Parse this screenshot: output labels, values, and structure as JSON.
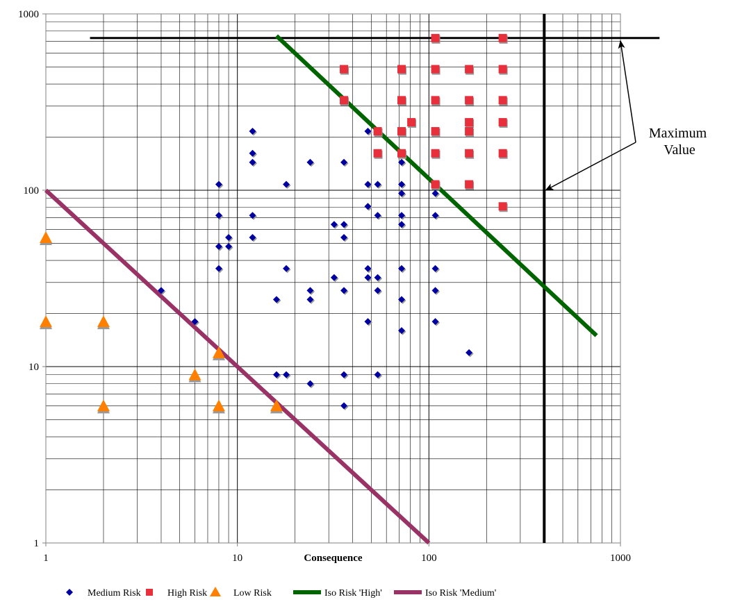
{
  "chart_data": {
    "type": "scatter",
    "xlabel": "Consequence",
    "ylabel": "",
    "xscale": "log",
    "yscale": "log",
    "xlim": [
      1,
      1000
    ],
    "ylim": [
      1,
      1000
    ],
    "grid": "on",
    "x_ticks": [
      "1",
      "10",
      "100",
      "1000"
    ],
    "y_ticks": [
      "1",
      "10",
      "100",
      "1000"
    ],
    "legend_position": "bottom",
    "annotation": {
      "text_lines": [
        "Maximum",
        "Value"
      ],
      "points_to": [
        {
          "x": 1000,
          "y": 730
        },
        {
          "x": 400,
          "y": 100
        }
      ]
    },
    "reference_lines": [
      {
        "orientation": "horizontal",
        "y": 730,
        "x_from": 1.7,
        "x_to": 1600,
        "color": "#000000"
      },
      {
        "orientation": "vertical",
        "x": 400,
        "y_from": 1,
        "y_to": 1000,
        "color": "#000000"
      }
    ],
    "series": [
      {
        "name": "Medium Risk",
        "kind": "scatter",
        "marker": "diamond",
        "color": "#0000a0",
        "points": [
          {
            "x": 4,
            "y": 27
          },
          {
            "x": 6,
            "y": 18
          },
          {
            "x": 8,
            "y": 108
          },
          {
            "x": 8,
            "y": 72
          },
          {
            "x": 8,
            "y": 48
          },
          {
            "x": 8,
            "y": 36
          },
          {
            "x": 9,
            "y": 54
          },
          {
            "x": 9,
            "y": 48
          },
          {
            "x": 12,
            "y": 216
          },
          {
            "x": 12,
            "y": 162
          },
          {
            "x": 12,
            "y": 144
          },
          {
            "x": 12,
            "y": 72
          },
          {
            "x": 12,
            "y": 54
          },
          {
            "x": 16,
            "y": 24
          },
          {
            "x": 16,
            "y": 9
          },
          {
            "x": 18,
            "y": 108
          },
          {
            "x": 18,
            "y": 36
          },
          {
            "x": 18,
            "y": 9
          },
          {
            "x": 24,
            "y": 144
          },
          {
            "x": 24,
            "y": 27
          },
          {
            "x": 24,
            "y": 24
          },
          {
            "x": 24,
            "y": 8
          },
          {
            "x": 32,
            "y": 64
          },
          {
            "x": 32,
            "y": 32
          },
          {
            "x": 36,
            "y": 144
          },
          {
            "x": 36,
            "y": 64
          },
          {
            "x": 36,
            "y": 54
          },
          {
            "x": 36,
            "y": 27
          },
          {
            "x": 36,
            "y": 9
          },
          {
            "x": 36,
            "y": 6
          },
          {
            "x": 48,
            "y": 216
          },
          {
            "x": 48,
            "y": 108
          },
          {
            "x": 48,
            "y": 81
          },
          {
            "x": 48,
            "y": 36
          },
          {
            "x": 48,
            "y": 32
          },
          {
            "x": 48,
            "y": 18
          },
          {
            "x": 54,
            "y": 108
          },
          {
            "x": 54,
            "y": 72
          },
          {
            "x": 54,
            "y": 32
          },
          {
            "x": 54,
            "y": 27
          },
          {
            "x": 54,
            "y": 9
          },
          {
            "x": 72,
            "y": 144
          },
          {
            "x": 72,
            "y": 108
          },
          {
            "x": 72,
            "y": 96
          },
          {
            "x": 72,
            "y": 72
          },
          {
            "x": 72,
            "y": 64
          },
          {
            "x": 72,
            "y": 36
          },
          {
            "x": 72,
            "y": 24
          },
          {
            "x": 72,
            "y": 16
          },
          {
            "x": 108,
            "y": 96
          },
          {
            "x": 108,
            "y": 72
          },
          {
            "x": 108,
            "y": 36
          },
          {
            "x": 108,
            "y": 27
          },
          {
            "x": 108,
            "y": 18
          },
          {
            "x": 162,
            "y": 12
          }
        ]
      },
      {
        "name": "High Risk",
        "kind": "scatter",
        "marker": "square",
        "color": "#e8303c",
        "points": [
          {
            "x": 36,
            "y": 486
          },
          {
            "x": 36,
            "y": 324
          },
          {
            "x": 54,
            "y": 216
          },
          {
            "x": 54,
            "y": 162
          },
          {
            "x": 72,
            "y": 486
          },
          {
            "x": 72,
            "y": 324
          },
          {
            "x": 72,
            "y": 216
          },
          {
            "x": 72,
            "y": 162
          },
          {
            "x": 81,
            "y": 243
          },
          {
            "x": 108,
            "y": 729
          },
          {
            "x": 108,
            "y": 486
          },
          {
            "x": 108,
            "y": 324
          },
          {
            "x": 108,
            "y": 216
          },
          {
            "x": 108,
            "y": 162
          },
          {
            "x": 108,
            "y": 108
          },
          {
            "x": 162,
            "y": 486
          },
          {
            "x": 162,
            "y": 324
          },
          {
            "x": 162,
            "y": 243
          },
          {
            "x": 162,
            "y": 216
          },
          {
            "x": 162,
            "y": 162
          },
          {
            "x": 162,
            "y": 108
          },
          {
            "x": 243,
            "y": 729
          },
          {
            "x": 243,
            "y": 486
          },
          {
            "x": 243,
            "y": 324
          },
          {
            "x": 243,
            "y": 243
          },
          {
            "x": 243,
            "y": 162
          },
          {
            "x": 243,
            "y": 81
          }
        ]
      },
      {
        "name": "Low Risk",
        "kind": "scatter",
        "marker": "triangle",
        "color": "#ff7f00",
        "points": [
          {
            "x": 1,
            "y": 54
          },
          {
            "x": 1,
            "y": 18
          },
          {
            "x": 2,
            "y": 18
          },
          {
            "x": 2,
            "y": 6
          },
          {
            "x": 6,
            "y": 9
          },
          {
            "x": 8,
            "y": 12
          },
          {
            "x": 8,
            "y": 6
          },
          {
            "x": 16,
            "y": 6
          }
        ]
      },
      {
        "name": "Iso Risk 'High'",
        "kind": "line",
        "color": "#006400",
        "points": [
          {
            "x": 16,
            "y": 750
          },
          {
            "x": 750,
            "y": 15
          }
        ]
      },
      {
        "name": "Iso Risk 'Medium'",
        "kind": "line",
        "color": "#993366",
        "points": [
          {
            "x": 1,
            "y": 100
          },
          {
            "x": 100,
            "y": 1
          }
        ]
      }
    ]
  }
}
